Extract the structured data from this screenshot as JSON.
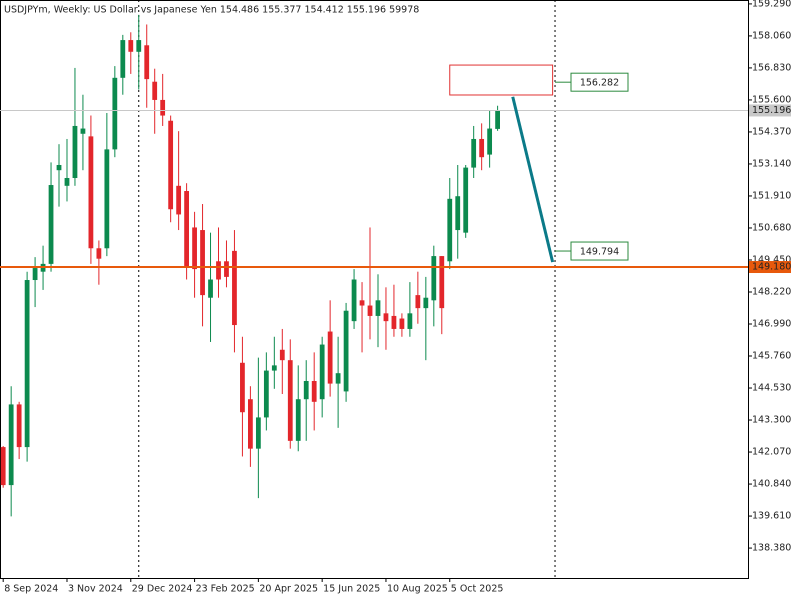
{
  "chart_data": {
    "type": "candlestick",
    "title": "USDJPYm, Weekly:  US Dollar vs Japanese Yen  154.486 155.377 154.412 155.196  59978",
    "categories": [
      "8 Sep 2024",
      null,
      null,
      null,
      null,
      null,
      null,
      null,
      "3 Nov 2024",
      null,
      null,
      null,
      null,
      null,
      null,
      null,
      "29 Dec 2024",
      null,
      null,
      null,
      null,
      null,
      null,
      null,
      "23 Feb 2025",
      null,
      null,
      null,
      null,
      null,
      null,
      null,
      "20 Apr 2025",
      null,
      null,
      null,
      null,
      null,
      null,
      null,
      "15 Jun 2025",
      null,
      null,
      null,
      null,
      null,
      null,
      null,
      "10 Aug 2025",
      null,
      null,
      null,
      null,
      null,
      null,
      null,
      "5 Oct 2025",
      null,
      null,
      null,
      null,
      null,
      null
    ],
    "open": [
      142.26,
      140.8,
      143.9,
      142.26,
      148.68,
      149.0,
      149.3,
      152.9,
      152.3,
      152.6,
      154.3,
      154.2,
      149.9,
      149.9,
      153.7,
      156.45,
      157.9,
      157.45,
      157.7,
      156.3,
      155.6,
      154.8,
      152.3,
      152.1,
      150.7,
      150.6,
      148.0,
      149.4,
      149.4,
      149.8,
      145.5,
      144.1,
      142.2,
      143.4,
      145.2,
      146.0,
      145.6,
      142.5,
      144.1,
      144.8,
      144.1,
      146.7,
      144.7,
      144.4,
      147.1,
      147.9,
      147.7,
      147.3,
      147.4,
      147.3,
      147.2,
      146.8,
      148.1,
      147.6,
      147.9,
      149.6,
      149.4,
      150.6,
      150.5,
      153.0,
      154.1,
      153.5,
      154.486
    ],
    "high": [
      142.3,
      144.6,
      144.0,
      149.0,
      149.56,
      150.0,
      153.2,
      153.9,
      154.1,
      156.83,
      155.8,
      155.0,
      150.2,
      155.1,
      156.9,
      158.1,
      158.2,
      158.87,
      158.5,
      156.8,
      156.6,
      155.0,
      154.4,
      152.4,
      151.3,
      151.6,
      150.5,
      150.7,
      150.2,
      150.6,
      146.5,
      144.6,
      145.7,
      145.9,
      146.5,
      146.8,
      146.4,
      145.4,
      145.6,
      145.9,
      146.5,
      147.9,
      146.5,
      147.8,
      149.1,
      148.6,
      150.7,
      148.9,
      148.4,
      148.5,
      147.4,
      148.6,
      149.0,
      148.8,
      150.0,
      149.6,
      152.6,
      153.1,
      153.1,
      154.6,
      154.7,
      155.2,
      155.377
    ],
    "low": [
      140.7,
      139.6,
      141.8,
      141.7,
      147.64,
      148.3,
      149.0,
      151.5,
      151.7,
      152.3,
      152.9,
      149.3,
      148.5,
      149.6,
      153.4,
      155.8,
      156.6,
      156.0,
      155.3,
      154.3,
      154.6,
      150.9,
      150.6,
      148.7,
      148.0,
      146.9,
      146.3,
      148.0,
      148.4,
      145.9,
      141.9,
      141.5,
      140.3,
      142.9,
      144.5,
      144.3,
      142.2,
      142.1,
      142.5,
      142.9,
      143.4,
      144.2,
      143.0,
      144.0,
      146.8,
      145.9,
      146.4,
      146.1,
      146.0,
      146.5,
      146.5,
      146.5,
      147.0,
      145.6,
      146.9,
      146.6,
      149.1,
      149.5,
      150.3,
      152.6,
      152.9,
      153.0,
      154.412
    ],
    "close": [
      140.8,
      143.9,
      142.26,
      148.68,
      149.14,
      149.3,
      152.33,
      153.1,
      152.6,
      154.6,
      154.5,
      149.9,
      149.5,
      153.7,
      156.45,
      157.9,
      157.45,
      157.9,
      156.4,
      155.6,
      155.0,
      151.4,
      151.2,
      149.2,
      149.1,
      148.1,
      148.7,
      148.7,
      148.8,
      146.95,
      143.6,
      142.2,
      143.4,
      145.2,
      145.4,
      145.6,
      142.5,
      144.1,
      144.8,
      144.0,
      146.2,
      144.7,
      145.1,
      147.5,
      148.7,
      147.7,
      147.3,
      147.9,
      147.1,
      146.8,
      146.8,
      147.4,
      147.6,
      148.0,
      149.6,
      147.6,
      151.8,
      151.9,
      153.0,
      154.1,
      153.4,
      154.5,
      155.196
    ],
    "up_color": "#0c8a4e",
    "down_color": "#e3262b",
    "xlim": [
      -0.4,
      93.4
    ],
    "ylim": [
      137.23,
      159.44
    ],
    "yticks": [
      {
        "value": 159.29,
        "label": "159.290"
      },
      {
        "value": 158.06,
        "label": "158.060"
      },
      {
        "value": 156.83,
        "label": "156.830"
      },
      {
        "value": 155.6,
        "label": "155.600"
      },
      {
        "value": 154.37,
        "label": "154.370"
      },
      {
        "value": 153.14,
        "label": "153.140"
      },
      {
        "value": 151.91,
        "label": "151.910"
      },
      {
        "value": 150.68,
        "label": "150.680"
      },
      {
        "value": 149.45,
        "label": "149.450"
      },
      {
        "value": 148.22,
        "label": "148.220"
      },
      {
        "value": 146.99,
        "label": "146.990"
      },
      {
        "value": 145.76,
        "label": "145.760"
      },
      {
        "value": 144.53,
        "label": "144.530"
      },
      {
        "value": 143.3,
        "label": "143.300"
      },
      {
        "value": 142.07,
        "label": "142.070"
      },
      {
        "value": 140.84,
        "label": "140.840"
      },
      {
        "value": 139.61,
        "label": "139.610"
      },
      {
        "value": 138.38,
        "label": "138.380"
      }
    ],
    "hlines": [
      {
        "value": 149.18,
        "label": "149.180",
        "color": "#e8590c"
      },
      {
        "value": 155.196,
        "color": "#c8c8c8"
      }
    ],
    "vlines": [
      17,
      69.2
    ],
    "rectangle": {
      "x": [
        56,
        68.9
      ],
      "y": [
        155.79,
        156.94
      ],
      "color": "#e03131"
    },
    "trendline": {
      "x": [
        63.9,
        68.9
      ],
      "y": [
        155.72,
        149.37
      ],
      "color": "#0b7a88"
    },
    "price_labels": [
      156.282,
      149.794
    ],
    "price_label_color": "#2b8a3e"
  }
}
